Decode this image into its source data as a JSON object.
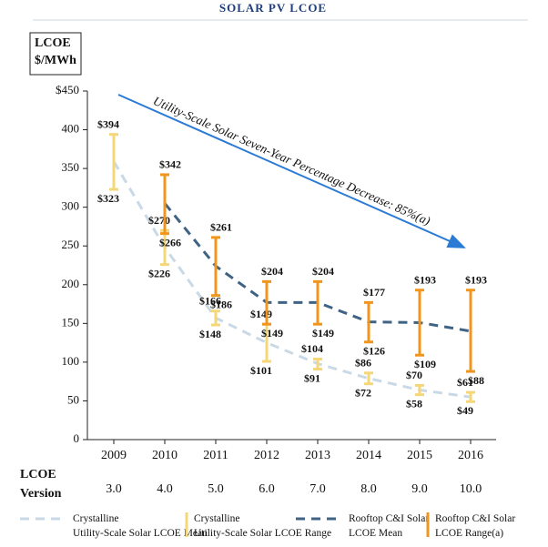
{
  "chart_data": {
    "type": "range-line",
    "title": "SOLAR PV LCOE",
    "ylabel": [
      "LCOE",
      "$/MWh"
    ],
    "annotation": "Utility-Scale Solar Seven-Year Percentage Decrease: 85%(a)",
    "categories": [
      "2009",
      "2010",
      "2011",
      "2012",
      "2013",
      "2014",
      "2015",
      "2016"
    ],
    "version_label": [
      "LCOE",
      "Version"
    ],
    "versions": [
      "3.0",
      "4.0",
      "5.0",
      "6.0",
      "7.0",
      "8.0",
      "9.0",
      "10.0"
    ],
    "ylim": [
      0,
      450
    ],
    "yticks": [
      0,
      50,
      100,
      150,
      200,
      250,
      300,
      350,
      400,
      {
        "value": 450,
        "label": "$450"
      }
    ],
    "series": [
      {
        "name": "Crystalline Utility-Scale Solar LCOE Mean",
        "kind": "mean",
        "color": "#c9d9e6",
        "values": [
          359,
          248,
          157,
          125,
          98,
          79,
          64,
          55
        ]
      },
      {
        "name": "Crystalline Utility-Scale Solar LCOE Range",
        "kind": "range",
        "color": "#f5d77a",
        "high": [
          394,
          270,
          166,
          149,
          104,
          86,
          70,
          61
        ],
        "low": [
          323,
          226,
          148,
          101,
          91,
          72,
          58,
          49
        ],
        "high_labels": [
          "$394",
          "$270",
          "$166",
          "$149",
          "$104",
          "$86",
          "$70",
          "$61"
        ],
        "low_labels": [
          "$323",
          "$226",
          "$148",
          "$101",
          "$91",
          "$72",
          "$58",
          "$49"
        ]
      },
      {
        "name": "Rooftop C&I Solar LCOE Mean",
        "kind": "mean",
        "color": "#3f6384",
        "values": [
          null,
          305,
          224,
          177,
          177,
          152,
          151,
          140
        ]
      },
      {
        "name": "Rooftop C&I Solar LCOE Range(a)",
        "kind": "range",
        "color": "#f0961e",
        "high": [
          null,
          342,
          261,
          204,
          204,
          177,
          193,
          193
        ],
        "low": [
          null,
          266,
          186,
          149,
          149,
          126,
          109,
          88
        ],
        "high_labels": [
          null,
          "$342",
          "$261",
          "$204",
          "$204",
          "$177",
          "$193",
          "$193"
        ],
        "low_labels": [
          null,
          "$266",
          "$186",
          "$149",
          "$149",
          "$126",
          "$109",
          "$88"
        ]
      }
    ]
  }
}
